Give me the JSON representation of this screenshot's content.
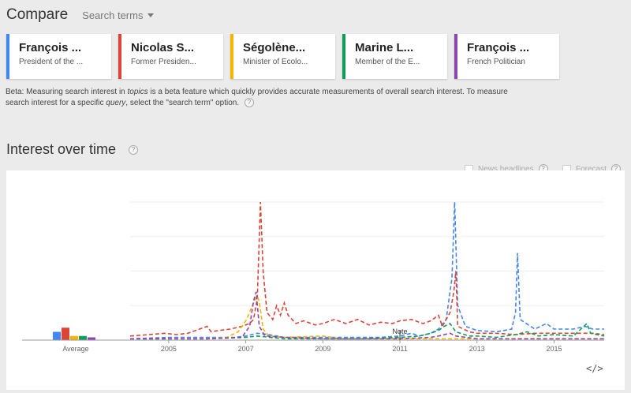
{
  "header": {
    "title": "Compare",
    "search_terms_label": "Search terms"
  },
  "cards": [
    {
      "name": "François ...",
      "desc": "President of the ...",
      "color": "#4285f4"
    },
    {
      "name": "Nicolas S...",
      "desc": "Former Presiden...",
      "color": "#db4437"
    },
    {
      "name": "Ségolène...",
      "desc": "Minister of Ecolo...",
      "color": "#f4b400"
    },
    {
      "name": "Marine L...",
      "desc": "Member of the E...",
      "color": "#0f9d58"
    },
    {
      "name": "François ...",
      "desc": "French Politician",
      "color": "#8e44ad"
    }
  ],
  "beta": {
    "t1": "Beta: Measuring search interest in ",
    "t2": "topics",
    "t3": " is a beta feature which quickly provides accurate measurements of overall search interest. To measure search interest for a specific ",
    "t4": "query",
    "t5": ", select the \"search term\" option.",
    "help": "?"
  },
  "section": {
    "title": "Interest over time",
    "help": "?"
  },
  "options": {
    "news_headlines": "News headlines",
    "forecast": "Forecast",
    "help": "?"
  },
  "embed_label": "</>",
  "chart_data": {
    "type": "line",
    "x_ticks": [
      "2005",
      "2007",
      "2009",
      "2011",
      "2013",
      "2015"
    ],
    "xlim": [
      2004.0,
      2016.3
    ],
    "ylim": [
      0,
      100
    ],
    "grid": true,
    "legend": "none",
    "annotation": {
      "x": 2011.0,
      "text": "Note"
    },
    "average": {
      "label": "Average",
      "values": [
        6,
        9,
        3,
        3,
        2
      ]
    },
    "series": [
      {
        "color": "#4285f4",
        "points": [
          [
            2004.0,
            1
          ],
          [
            2005.0,
            2
          ],
          [
            2006.0,
            2
          ],
          [
            2006.7,
            2
          ],
          [
            2007.0,
            3
          ],
          [
            2007.3,
            5
          ],
          [
            2007.6,
            4
          ],
          [
            2008.0,
            2
          ],
          [
            2009.0,
            2
          ],
          [
            2010.0,
            2
          ],
          [
            2010.5,
            2
          ],
          [
            2011.0,
            3
          ],
          [
            2011.3,
            5
          ],
          [
            2011.5,
            3
          ],
          [
            2011.8,
            5
          ],
          [
            2012.0,
            8
          ],
          [
            2012.2,
            15
          ],
          [
            2012.35,
            45
          ],
          [
            2012.42,
            100
          ],
          [
            2012.5,
            25
          ],
          [
            2012.7,
            10
          ],
          [
            2013.0,
            7
          ],
          [
            2013.5,
            6
          ],
          [
            2013.9,
            8
          ],
          [
            2014.0,
            20
          ],
          [
            2014.05,
            63
          ],
          [
            2014.12,
            15
          ],
          [
            2014.5,
            8
          ],
          [
            2014.8,
            12
          ],
          [
            2015.0,
            8
          ],
          [
            2015.5,
            8
          ],
          [
            2015.8,
            10
          ],
          [
            2016.0,
            8
          ],
          [
            2016.3,
            8
          ]
        ]
      },
      {
        "color": "#db4437",
        "points": [
          [
            2004.0,
            3
          ],
          [
            2004.5,
            4
          ],
          [
            2004.9,
            5
          ],
          [
            2005.2,
            4
          ],
          [
            2005.5,
            5
          ],
          [
            2005.8,
            8
          ],
          [
            2006.0,
            10
          ],
          [
            2006.1,
            6
          ],
          [
            2006.3,
            7
          ],
          [
            2006.6,
            8
          ],
          [
            2006.9,
            10
          ],
          [
            2007.1,
            12
          ],
          [
            2007.2,
            15
          ],
          [
            2007.3,
            30
          ],
          [
            2007.38,
            100
          ],
          [
            2007.45,
            50
          ],
          [
            2007.55,
            20
          ],
          [
            2007.7,
            15
          ],
          [
            2007.8,
            25
          ],
          [
            2007.9,
            18
          ],
          [
            2008.0,
            27
          ],
          [
            2008.1,
            18
          ],
          [
            2008.3,
            12
          ],
          [
            2008.5,
            14
          ],
          [
            2008.8,
            11
          ],
          [
            2009.0,
            12
          ],
          [
            2009.3,
            15
          ],
          [
            2009.6,
            12
          ],
          [
            2009.9,
            15
          ],
          [
            2010.2,
            11
          ],
          [
            2010.5,
            13
          ],
          [
            2010.8,
            12
          ],
          [
            2011.0,
            14
          ],
          [
            2011.3,
            15
          ],
          [
            2011.6,
            12
          ],
          [
            2011.8,
            14
          ],
          [
            2012.0,
            18
          ],
          [
            2012.1,
            10
          ],
          [
            2012.3,
            20
          ],
          [
            2012.4,
            35
          ],
          [
            2012.45,
            50
          ],
          [
            2012.5,
            10
          ],
          [
            2012.8,
            6
          ],
          [
            2013.0,
            5
          ],
          [
            2013.5,
            5
          ],
          [
            2014.0,
            4
          ],
          [
            2014.5,
            5
          ],
          [
            2015.0,
            5
          ],
          [
            2015.5,
            5
          ],
          [
            2016.0,
            5
          ],
          [
            2016.3,
            4
          ]
        ]
      },
      {
        "color": "#f4b400",
        "points": [
          [
            2004.0,
            1
          ],
          [
            2005.0,
            1
          ],
          [
            2006.0,
            1
          ],
          [
            2006.5,
            2
          ],
          [
            2006.8,
            6
          ],
          [
            2007.0,
            14
          ],
          [
            2007.1,
            20
          ],
          [
            2007.2,
            27
          ],
          [
            2007.3,
            32
          ],
          [
            2007.35,
            28
          ],
          [
            2007.45,
            8
          ],
          [
            2007.6,
            3
          ],
          [
            2008.0,
            2
          ],
          [
            2009.0,
            3
          ],
          [
            2009.5,
            1
          ],
          [
            2010.0,
            1
          ],
          [
            2011.0,
            1
          ],
          [
            2012.0,
            1
          ],
          [
            2013.0,
            1
          ],
          [
            2014.0,
            1
          ],
          [
            2015.0,
            1
          ],
          [
            2016.3,
            1
          ]
        ]
      },
      {
        "color": "#0f9d58",
        "points": [
          [
            2004.0,
            1
          ],
          [
            2005.0,
            1
          ],
          [
            2006.0,
            1
          ],
          [
            2007.0,
            2
          ],
          [
            2007.3,
            3
          ],
          [
            2008.0,
            1
          ],
          [
            2009.0,
            1
          ],
          [
            2010.0,
            1
          ],
          [
            2011.0,
            2
          ],
          [
            2011.5,
            3
          ],
          [
            2011.8,
            5
          ],
          [
            2012.0,
            7
          ],
          [
            2012.15,
            10
          ],
          [
            2012.3,
            12
          ],
          [
            2012.45,
            6
          ],
          [
            2012.8,
            3
          ],
          [
            2013.0,
            3
          ],
          [
            2013.5,
            2
          ],
          [
            2014.0,
            4
          ],
          [
            2014.3,
            6
          ],
          [
            2014.6,
            3
          ],
          [
            2015.0,
            4
          ],
          [
            2015.5,
            3
          ],
          [
            2015.85,
            12
          ],
          [
            2015.95,
            5
          ],
          [
            2016.3,
            3
          ]
        ]
      },
      {
        "color": "#8e44ad",
        "points": [
          [
            2004.0,
            1
          ],
          [
            2005.0,
            1
          ],
          [
            2006.0,
            1
          ],
          [
            2006.9,
            2
          ],
          [
            2007.1,
            10
          ],
          [
            2007.2,
            28
          ],
          [
            2007.27,
            35
          ],
          [
            2007.35,
            10
          ],
          [
            2007.5,
            3
          ],
          [
            2008.0,
            2
          ],
          [
            2009.0,
            1
          ],
          [
            2010.0,
            1
          ],
          [
            2011.0,
            1
          ],
          [
            2011.8,
            2
          ],
          [
            2012.0,
            3
          ],
          [
            2012.3,
            5
          ],
          [
            2012.45,
            3
          ],
          [
            2013.0,
            1
          ],
          [
            2014.0,
            1
          ],
          [
            2015.0,
            1
          ],
          [
            2016.3,
            1
          ]
        ]
      }
    ]
  }
}
